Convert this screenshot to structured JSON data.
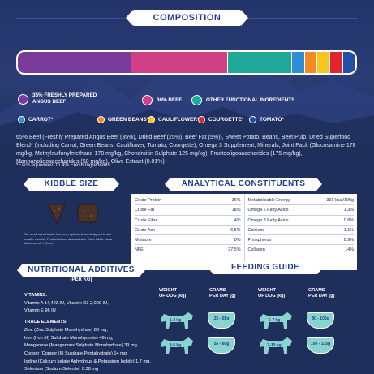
{
  "composition": {
    "title": "COMPOSITION",
    "bar_segments": [
      {
        "name": "35% FRESHLY PREPARED ANGUS BEEF",
        "value": 35,
        "color": "#7a3a9c"
      },
      {
        "name": "30% BEEF",
        "value": 30,
        "color": "#d13f86"
      },
      {
        "name": "OTHER FUNCTIONAL INGREDIENTS",
        "value": 20,
        "color": "#1fa99a"
      },
      {
        "name": "CARROT",
        "value": 4,
        "color": "#2c8fd6"
      },
      {
        "name": "GREEN BEANS",
        "value": 4,
        "color": "#f58a22"
      },
      {
        "name": "CAULIFLOWER",
        "value": 4,
        "color": "#f7c51d"
      },
      {
        "name": "COURGETTE",
        "value": 4,
        "color": "#e02530"
      },
      {
        "name": "TOMATO",
        "value": 4,
        "color": "#234ea8"
      }
    ],
    "legend": [
      {
        "label_line1": "35% FRESHLY PREPARED",
        "label_line2": "ANGUS BEEF",
        "color": "#7a3a9c"
      },
      {
        "label_line1": "30% BEEF",
        "label_line2": "",
        "color": "#d13f86"
      },
      {
        "label_line1": "OTHER FUNCTIONAL INGREDIENTS",
        "label_line2": "",
        "color": "#1fa99a"
      },
      {
        "label_line1": "CARROT*",
        "label_line2": "",
        "color": "#2c8fd6"
      },
      {
        "label_line1": "GREEN BEANS*",
        "label_line2": "",
        "color": "#f58a22"
      },
      {
        "label_line1": "CAULIFLOWER*",
        "label_line2": "",
        "color": "#f7c51d"
      },
      {
        "label_line1": "COURGETTE*",
        "label_line2": "",
        "color": "#e02530"
      },
      {
        "label_line1": "TOMATO*",
        "label_line2": "",
        "color": "#234ea8"
      }
    ],
    "ingredients_text": "65% Beef (Freshly Prepared Angus Beef (35%), Dried Beef (25%), Beef Fat (5%)), Sweet Potato, Beans, Beet Pulp, Dried Superfood Blend* (Including Carrot, Green Beans, Cauliflower, Tomato, Courgette), Omega 3 Supplement, Minerals, Joint Pack (Glucosamine 178 mg/kg, Methylsulfonylmethane 178 mg/kg, Chondroitin Sulphate 125 mg/kg), Fructooligosaccharides (175 mg/kg), Mannanoligosaccharides (50 mg/kg), Olive Extract (0.01%)",
    "footnote": "*Each equivalent to 4% Fresh Ingredients"
  },
  "kibble": {
    "title": "KIBBLE SIZE",
    "note": "Our small breed kibble has been optimised and designed to suit smaller mouths. Product shown at actual size. Each kibble has a tolerance of +/- 1mm."
  },
  "analytical": {
    "title": "ANALYTICAL CONSTITUENTS",
    "left": [
      {
        "name": "Crude Protein",
        "value": "36%"
      },
      {
        "name": "Crude Fat",
        "value": "18%"
      },
      {
        "name": "Crude Fibre",
        "value": "4%"
      },
      {
        "name": "Crude Ash",
        "value": "6.5%"
      },
      {
        "name": "Moisture",
        "value": "8%"
      },
      {
        "name": "NFE",
        "value": "27.5%"
      }
    ],
    "right": [
      {
        "name": "Metabolisable Energy",
        "value": "391 kcal/100g"
      },
      {
        "name": "Omega 6 Fatty Acids",
        "value": "1.3%"
      },
      {
        "name": "Omega 3 Fatty Acids",
        "value": "0.8%"
      },
      {
        "name": "Calcium",
        "value": "1.1%"
      },
      {
        "name": "Phosphorus",
        "value": "0.9%"
      },
      {
        "name": "Collagen",
        "value": "14%"
      }
    ]
  },
  "nutritional": {
    "title": "NUTRITIONAL ADDITIVES",
    "subtitle": "(PER KG)",
    "vitamins_head": "VITAMINS:",
    "vitamins_1": "Vitamin A 14,423 IU, Vitamin D3 2,000 IU,",
    "vitamins_2": "Vitamin E 96 IU",
    "trace_head": "TRACE ELEMENTS:",
    "trace": [
      "Zinc (Zinc Sulphate Monohydrate) 83 mg,",
      "Iron (Iron (II) Sulphate Monohydrate) 48 mg,",
      "Manganese (Manganous Sulphate Monohydrate) 39 mg,",
      "Copper (Copper (II) Sulphate Pentahydrate) 14 mg,",
      "Iodine (Calcium Iodate Anhydrous & Potassium Iodide) 1.7 mg,",
      "Selenium (Sodium Selenite) 0.38 mg"
    ]
  },
  "feeding": {
    "title": "FEEDING GUIDE",
    "weight_head": "WEIGHT\nOF DOG (kg)",
    "grams_head": "GRAMS\nPER DAY (g)",
    "rows": [
      {
        "weight": "1-3 kg",
        "grams": "25 - 55g"
      },
      {
        "weight": "5-7 kg",
        "grams": "80 - 100g"
      },
      {
        "weight": "3-5 kg",
        "grams": "55 - 80g"
      },
      {
        "weight": "7-10 kg",
        "grams": "100 - 135g"
      }
    ],
    "head_weight_1": "WEIGHT",
    "head_weight_2": "OF DOG (kg)",
    "head_grams_1": "GRAMS",
    "head_grams_2": "PER DAY (g)"
  }
}
